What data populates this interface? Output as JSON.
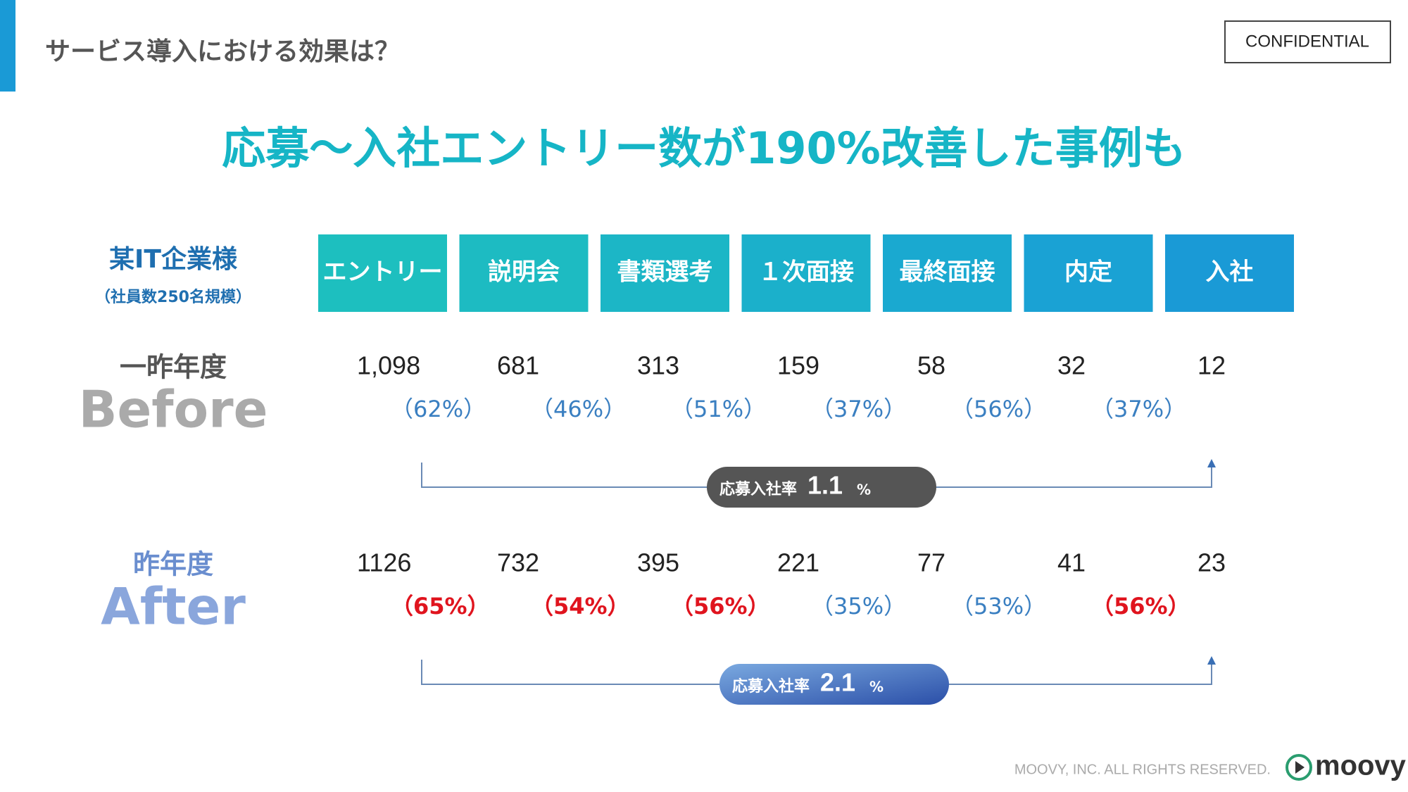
{
  "header": {
    "title": "サービス導入における効果は？",
    "confidential": "CONFIDENTIAL"
  },
  "headline": "応募〜入社エントリー数が190%改善した事例も",
  "company": {
    "name": "某IT企業様",
    "note": "（社員数250名規模）"
  },
  "stages": [
    "エントリー",
    "説明会",
    "書類選考",
    "１次面接",
    "最終面接",
    "内定",
    "入社"
  ],
  "rows": [
    {
      "label": "一昨年度",
      "label_en": "Before",
      "values": [
        "1,098",
        "681",
        "313",
        "159",
        "58",
        "32",
        "12"
      ],
      "rates": [
        {
          "text": "（62%）",
          "highlight": false
        },
        {
          "text": "（46%）",
          "highlight": false
        },
        {
          "text": "（51%）",
          "highlight": false
        },
        {
          "text": "（37%）",
          "highlight": false
        },
        {
          "text": "（56%）",
          "highlight": false
        },
        {
          "text": "（37%）",
          "highlight": false
        }
      ],
      "badge": {
        "label": "応募入社率",
        "value": "1.1",
        "unit": "%"
      }
    },
    {
      "label": "昨年度",
      "label_en": "After",
      "values": [
        "1126",
        "732",
        "395",
        "221",
        "77",
        "41",
        "23"
      ],
      "rates": [
        {
          "text": "（65%）",
          "highlight": true
        },
        {
          "text": "（54%）",
          "highlight": true
        },
        {
          "text": "（56%）",
          "highlight": true
        },
        {
          "text": "（35%）",
          "highlight": false
        },
        {
          "text": "（53%）",
          "highlight": false
        },
        {
          "text": "（56%）",
          "highlight": true
        }
      ],
      "badge": {
        "label": "応募入社率",
        "value": "2.1",
        "unit": "%"
      }
    }
  ],
  "footer": {
    "copyright": "MOOVY, INC. ALL RIGHTS RESERVED.",
    "logo": "moovy"
  }
}
